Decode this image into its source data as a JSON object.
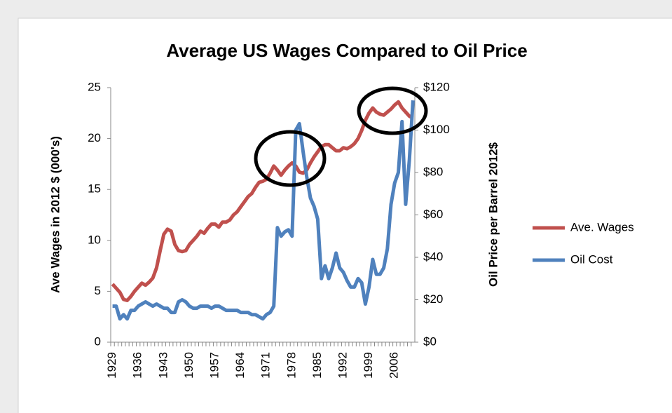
{
  "chart_data": {
    "type": "line",
    "title": "Average US Wages Compared to Oil Price",
    "y_label": "Ave Wages in 2012 $ (000's)",
    "y2_label": "Oil Price per Barrel 2012$",
    "categories": [
      "1929",
      null,
      null,
      null,
      null,
      null,
      null,
      "1936",
      null,
      null,
      null,
      null,
      null,
      null,
      "1943",
      null,
      null,
      null,
      null,
      null,
      null,
      "1950",
      null,
      null,
      null,
      null,
      null,
      null,
      "1957",
      null,
      null,
      null,
      null,
      null,
      null,
      "1964",
      null,
      null,
      null,
      null,
      null,
      null,
      "1971",
      null,
      null,
      null,
      null,
      null,
      null,
      "1978",
      null,
      null,
      null,
      null,
      null,
      null,
      "1985",
      null,
      null,
      null,
      null,
      null,
      null,
      "1992",
      null,
      null,
      null,
      null,
      null,
      null,
      "1999",
      null,
      null,
      null,
      null,
      null,
      null,
      "2006",
      null,
      null,
      null,
      null,
      null
    ],
    "series": [
      {
        "name": "Ave. Wages",
        "color": "#c0504d",
        "values": [
          5.7,
          5.3,
          4.9,
          4.2,
          4.1,
          4.5,
          5.0,
          5.4,
          5.8,
          5.6,
          5.9,
          6.3,
          7.3,
          9.0,
          10.6,
          11.1,
          10.9,
          9.6,
          9.0,
          8.9,
          9.0,
          9.6,
          10.0,
          10.4,
          10.9,
          10.7,
          11.2,
          11.6,
          11.6,
          11.3,
          11.8,
          11.8,
          12.0,
          12.5,
          12.8,
          13.3,
          13.8,
          14.3,
          14.6,
          15.2,
          15.7,
          15.8,
          16.0,
          16.6,
          17.3,
          16.9,
          16.4,
          16.9,
          17.3,
          17.6,
          17.3,
          16.7,
          16.6,
          16.9,
          17.6,
          18.2,
          18.7,
          19.2,
          19.4,
          19.4,
          19.1,
          18.8,
          18.8,
          19.1,
          19.0,
          19.2,
          19.5,
          20.0,
          20.8,
          21.8,
          22.5,
          23.0,
          22.6,
          22.4,
          22.3,
          22.6,
          22.9,
          23.3,
          23.6,
          23.0,
          22.6,
          22.2,
          22.0
        ]
      },
      {
        "name": "Oil Cost",
        "color": "#4f81bd",
        "axis": "y2",
        "values": [
          17,
          17,
          11,
          13,
          11,
          15,
          15,
          17,
          18,
          19,
          18,
          17,
          18,
          17,
          16,
          16,
          14,
          14,
          19,
          20,
          19,
          17,
          16,
          16,
          17,
          17,
          17,
          16,
          17,
          17,
          16,
          15,
          15,
          15,
          15,
          14,
          14,
          14,
          13,
          13,
          12,
          11,
          13,
          14,
          17,
          54,
          50,
          52,
          53,
          50,
          100,
          103,
          90,
          78,
          68,
          64,
          58,
          30,
          36,
          30,
          35,
          42,
          35,
          33,
          29,
          26,
          26,
          30,
          28,
          18,
          26,
          39,
          32,
          32,
          35,
          44,
          65,
          75,
          80,
          104,
          65,
          86,
          114
        ]
      }
    ],
    "ylim": [
      0,
      25
    ],
    "yticks": [
      0,
      5,
      10,
      15,
      20,
      25
    ],
    "y2lim": [
      0,
      120
    ],
    "y2ticks": [
      {
        "value": 0,
        "label": "$0"
      },
      {
        "value": 20,
        "label": "$20"
      },
      {
        "value": 40,
        "label": "$40"
      },
      {
        "value": 60,
        "label": "$60"
      },
      {
        "value": 80,
        "label": "$80"
      },
      {
        "value": 100,
        "label": "$100"
      },
      {
        "value": 120,
        "label": "$120"
      }
    ],
    "legend": "right"
  }
}
